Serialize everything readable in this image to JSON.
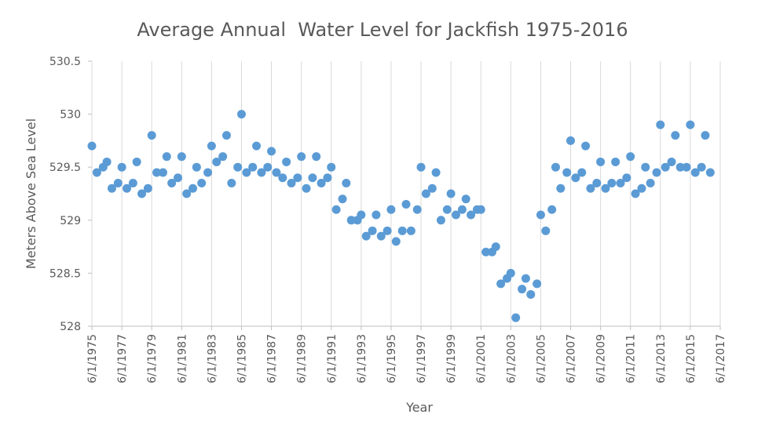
{
  "chart_data": {
    "type": "scatter",
    "title": "Average Annual  Water Level for Jackfish 1975-2016",
    "x_label": "Year",
    "y_label": "Meters Above Sea Level",
    "color": "#5b9bd5",
    "grid": true,
    "xlim": [
      "6/1/1975",
      "6/1/2017"
    ],
    "xticks": [
      "6/1/1975",
      "6/1/1977",
      "6/1/1979",
      "6/1/1981",
      "6/1/1983",
      "6/1/1985",
      "6/1/1987",
      "6/1/1989",
      "6/1/1991",
      "6/1/1993",
      "6/1/1995",
      "6/1/1997",
      "6/1/1999",
      "6/1/2001",
      "6/1/2003",
      "6/1/2005",
      "6/1/2007",
      "6/1/2009",
      "6/1/2011",
      "6/1/2013",
      "6/1/2015",
      "6/1/2017"
    ],
    "ylim": [
      528,
      530.5
    ],
    "yticks": [
      528,
      528.5,
      529,
      529.5,
      530,
      530.5
    ],
    "x": [
      "6/1/1975",
      "10/1/1975",
      "3/1/1976",
      "6/1/1976",
      "10/1/1976",
      "3/1/1977",
      "6/1/1977",
      "10/1/1977",
      "3/1/1978",
      "6/1/1978",
      "10/1/1978",
      "3/1/1979",
      "6/1/1979",
      "10/1/1979",
      "3/1/1980",
      "6/1/1980",
      "10/1/1980",
      "3/1/1981",
      "6/1/1981",
      "10/1/1981",
      "3/1/1982",
      "6/1/1982",
      "10/1/1982",
      "3/1/1983",
      "6/1/1983",
      "10/1/1983",
      "3/1/1984",
      "6/1/1984",
      "10/1/1984",
      "3/1/1985",
      "6/1/1985",
      "10/1/1985",
      "3/1/1986",
      "6/1/1986",
      "10/1/1986",
      "3/1/1987",
      "6/1/1987",
      "10/1/1987",
      "3/1/1988",
      "6/1/1988",
      "10/1/1988",
      "3/1/1989",
      "6/1/1989",
      "10/1/1989",
      "3/1/1990",
      "6/1/1990",
      "10/1/1990",
      "3/1/1991",
      "6/1/1991",
      "10/1/1991",
      "3/1/1992",
      "6/1/1992",
      "10/1/1992",
      "3/1/1993",
      "6/1/1993",
      "10/1/1993",
      "3/1/1994",
      "6/1/1994",
      "10/1/1994",
      "3/1/1995",
      "6/1/1995",
      "10/1/1995",
      "3/1/1996",
      "6/1/1996",
      "10/1/1996",
      "3/1/1997",
      "6/1/1997",
      "10/1/1997",
      "3/1/1998",
      "6/1/1998",
      "10/1/1998",
      "3/1/1999",
      "6/1/1999",
      "10/1/1999",
      "3/1/2000",
      "6/1/2000",
      "10/1/2000",
      "3/1/2001",
      "6/1/2001",
      "10/1/2001",
      "3/1/2002",
      "6/1/2002",
      "10/1/2002",
      "3/1/2003",
      "6/1/2003",
      "10/1/2003",
      "3/1/2004",
      "6/1/2004",
      "10/1/2004",
      "3/1/2005",
      "6/1/2005",
      "10/1/2005",
      "3/1/2006",
      "6/1/2006",
      "10/1/2006",
      "3/1/2007",
      "6/1/2007",
      "10/1/2007",
      "3/1/2008",
      "6/1/2008",
      "10/1/2008",
      "3/1/2009",
      "6/1/2009",
      "10/1/2009",
      "3/1/2010",
      "6/1/2010",
      "10/1/2010",
      "3/1/2011",
      "6/1/2011",
      "10/1/2011",
      "3/1/2012",
      "6/1/2012",
      "10/1/2012",
      "3/1/2013",
      "6/1/2013",
      "10/1/2013",
      "3/1/2014",
      "6/1/2014",
      "10/1/2014",
      "3/1/2015",
      "6/1/2015",
      "10/1/2015",
      "3/1/2016",
      "6/1/2016",
      "10/1/2016"
    ],
    "values": [
      529.7,
      529.45,
      529.5,
      529.55,
      529.3,
      529.35,
      529.5,
      529.3,
      529.35,
      529.55,
      529.25,
      529.3,
      529.8,
      529.45,
      529.45,
      529.6,
      529.35,
      529.4,
      529.6,
      529.25,
      529.3,
      529.5,
      529.35,
      529.45,
      529.7,
      529.55,
      529.6,
      529.8,
      529.35,
      529.5,
      530.0,
      529.45,
      529.5,
      529.7,
      529.45,
      529.5,
      529.65,
      529.45,
      529.4,
      529.55,
      529.35,
      529.4,
      529.6,
      529.3,
      529.4,
      529.6,
      529.35,
      529.4,
      529.5,
      529.1,
      529.2,
      529.35,
      529.0,
      529.0,
      529.05,
      528.85,
      528.9,
      529.05,
      528.85,
      528.9,
      529.1,
      528.8,
      528.9,
      529.15,
      528.9,
      529.1,
      529.5,
      529.25,
      529.3,
      529.45,
      529.0,
      529.1,
      529.25,
      529.05,
      529.1,
      529.2,
      529.05,
      529.1,
      529.1,
      528.7,
      528.7,
      528.75,
      528.4,
      528.45,
      528.5,
      528.08,
      528.35,
      528.45,
      528.3,
      528.4,
      529.05,
      528.9,
      529.1,
      529.5,
      529.3,
      529.45,
      529.75,
      529.4,
      529.45,
      529.7,
      529.3,
      529.35,
      529.55,
      529.3,
      529.35,
      529.55,
      529.35,
      529.4,
      529.6,
      529.25,
      529.3,
      529.5,
      529.35,
      529.45,
      529.9,
      529.5,
      529.55,
      529.8,
      529.5,
      529.5,
      529.9,
      529.45,
      529.5,
      529.8,
      529.45
    ]
  }
}
